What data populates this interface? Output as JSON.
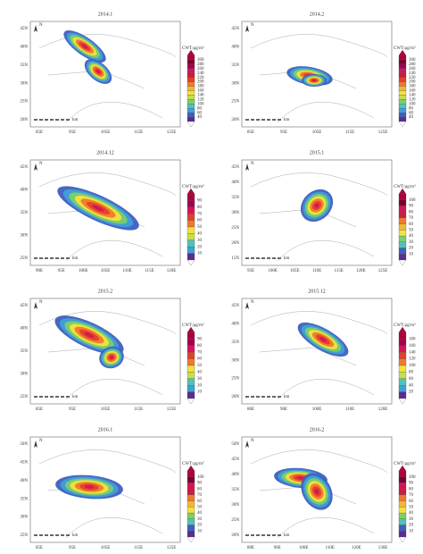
{
  "colorbar_title": "CWT/μg/m³",
  "north": "N",
  "scale_unit": "km",
  "panels": [
    {
      "title": "2014.1",
      "lats": [
        "45N",
        "40N",
        "35N",
        "30N",
        "25N",
        "20N"
      ],
      "lons": [
        "85E",
        "95E",
        "105E",
        "115E",
        "125E"
      ],
      "colorbar": [
        "300",
        "280",
        "260",
        "240",
        "220",
        "200",
        "180",
        "160",
        "140",
        "120",
        "100",
        "80",
        "60",
        "40"
      ]
    },
    {
      "title": "2014.2",
      "lats": [
        "45N",
        "40N",
        "35N",
        "30N",
        "25N",
        "20N"
      ],
      "lons": [
        "85E",
        "95E",
        "105E",
        "115E",
        "125E"
      ],
      "colorbar": [
        "300",
        "280",
        "260",
        "240",
        "220",
        "200",
        "180",
        "160",
        "140",
        "120",
        "100",
        "80",
        "60",
        "40"
      ]
    },
    {
      "title": "2014.12",
      "lats": [
        "45N",
        "40N",
        "35N",
        "30N",
        "25N"
      ],
      "lons": [
        "90E",
        "95E",
        "100E",
        "105E",
        "110E",
        "115E",
        "120E"
      ],
      "colorbar": [
        "90",
        "80",
        "70",
        "60",
        "50",
        "40",
        "30",
        "20",
        "10"
      ]
    },
    {
      "title": "2015.1",
      "lats": [
        "45N",
        "40N",
        "35N",
        "30N",
        "25N",
        "20N",
        "15N"
      ],
      "lons": [
        "95E",
        "100E",
        "105E",
        "110E",
        "115E",
        "120E",
        "125E"
      ],
      "colorbar": [
        "100",
        "90",
        "80",
        "70",
        "60",
        "50",
        "40",
        "30",
        "20",
        "10"
      ]
    },
    {
      "title": "2015.2",
      "lats": [
        "45N",
        "40N",
        "35N",
        "30N",
        "25N"
      ],
      "lons": [
        "85E",
        "95E",
        "105E",
        "115E",
        "125E"
      ],
      "colorbar": [
        "90",
        "80",
        "70",
        "60",
        "50",
        "40",
        "30",
        "20",
        "10"
      ]
    },
    {
      "title": "2015.12",
      "lats": [
        "45N",
        "40N",
        "35N",
        "30N",
        "25N",
        "20N"
      ],
      "lons": [
        "80E",
        "90E",
        "100E",
        "110E",
        "120E"
      ],
      "colorbar": [
        "180",
        "160",
        "140",
        "120",
        "100",
        "80",
        "60",
        "40",
        "20"
      ]
    },
    {
      "title": "2016.1",
      "lats": [
        "50N",
        "45N",
        "40N",
        "35N",
        "30N",
        "25N"
      ],
      "lons": [
        "85E",
        "95E",
        "105E",
        "115E",
        "125E"
      ],
      "colorbar": [
        "100",
        "90",
        "80",
        "70",
        "60",
        "50",
        "40",
        "30",
        "20",
        "10"
      ]
    },
    {
      "title": "2016.2",
      "lats": [
        "50N",
        "45N",
        "40N",
        "35N",
        "30N",
        "25N",
        "20N"
      ],
      "lons": [
        "80E",
        "90E",
        "100E",
        "110E",
        "120E",
        "130E"
      ],
      "colorbar": [
        "100",
        "90",
        "80",
        "70",
        "60",
        "50",
        "40",
        "30",
        "20",
        "10"
      ]
    }
  ]
}
